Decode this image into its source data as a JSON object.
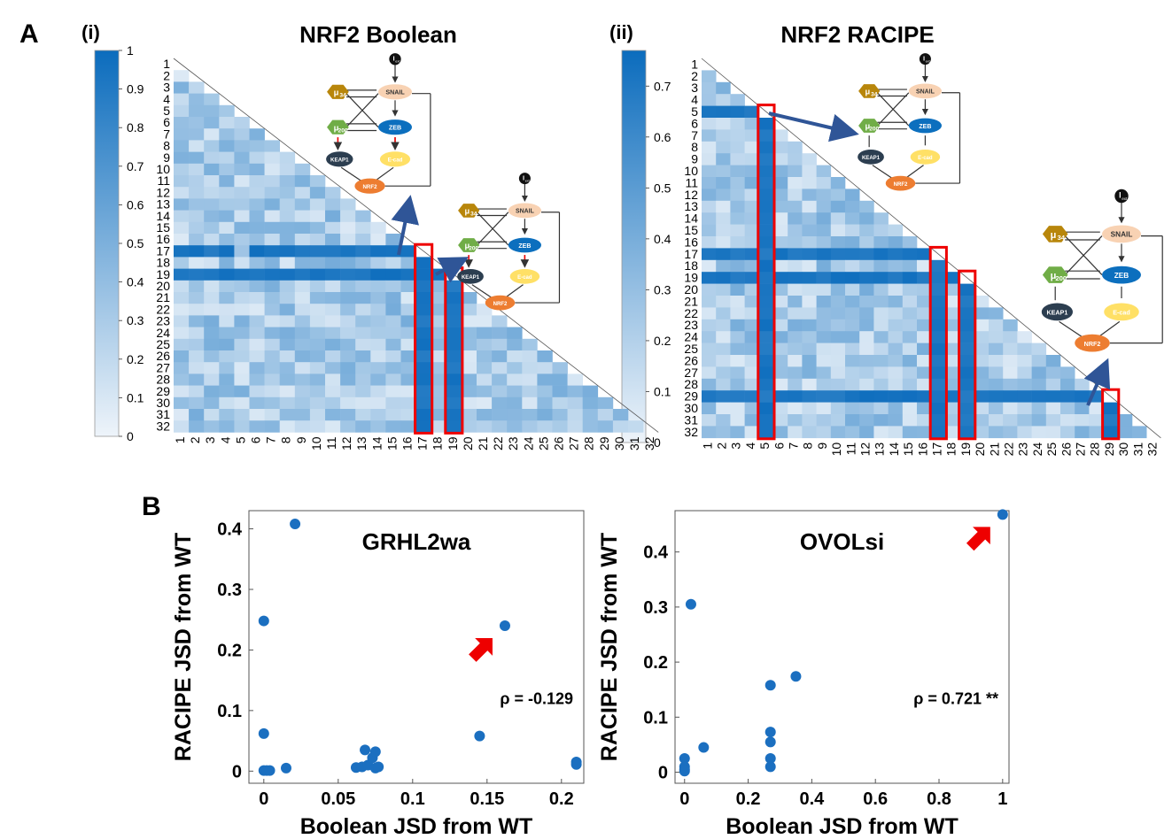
{
  "labels": {
    "panelA": "A",
    "panelB": "B",
    "subI": "(i)",
    "subII": "(ii)"
  },
  "heatmaps": [
    {
      "title": "NRF2 Boolean",
      "colorbar_ticks": [
        "0",
        "0.1",
        "0.2",
        "0.3",
        "0.4",
        "0.5",
        "0.6",
        "0.7",
        "0.8",
        "0.9",
        "1"
      ],
      "colorbar_max": 1,
      "highlight_indices": [
        17,
        19
      ],
      "dark_rows": [
        17,
        19
      ],
      "row_labels": [
        "1",
        "2",
        "3",
        "4",
        "5",
        "6",
        "7",
        "8",
        "9",
        "10",
        "11",
        "12",
        "13",
        "14",
        "15",
        "16",
        "17",
        "18",
        "19",
        "20",
        "21",
        "22",
        "23",
        "24",
        "25",
        "26",
        "27",
        "28",
        "29",
        "30",
        "31",
        "32"
      ]
    },
    {
      "title": "NRF2 RACIPE",
      "colorbar_ticks": [
        "0",
        "0.1",
        "0.2",
        "0.3",
        "0.4",
        "0.5",
        "0.6",
        "0.7"
      ],
      "colorbar_max": 0.77,
      "highlight_indices": [
        5,
        17,
        19,
        29
      ],
      "dark_rows": [
        5,
        17,
        19,
        29
      ],
      "row_labels": [
        "1",
        "2",
        "3",
        "4",
        "5",
        "6",
        "7",
        "8",
        "9",
        "10",
        "11",
        "12",
        "13",
        "14",
        "15",
        "16",
        "17",
        "18",
        "19",
        "20",
        "21",
        "22",
        "23",
        "24",
        "25",
        "26",
        "27",
        "28",
        "29",
        "30",
        "31",
        "32"
      ]
    }
  ],
  "network": {
    "nodes": [
      "I_ext",
      "SNAIL",
      "μ34",
      "ZEB",
      "μ200",
      "KEAP1",
      "E-cad",
      "NRF2"
    ],
    "iext_main": "I",
    "iext_sub": "ext",
    "mu_main": "μ",
    "mu34_sub": "34",
    "mu200_sub": "200"
  },
  "chart_data": [
    {
      "type": "scatter",
      "title": "GRHL2wa",
      "xlabel": "Boolean JSD from WT",
      "ylabel": "RACIPE JSD from WT",
      "xlim": [
        -0.01,
        0.215
      ],
      "ylim": [
        -0.02,
        0.43
      ],
      "xticks": [
        "0",
        "0.05",
        "0.1",
        "0.15",
        "0.2"
      ],
      "yticks": [
        "0",
        "0.1",
        "0.2",
        "0.3",
        "0.4"
      ],
      "annotation": "ρ = -0.129",
      "arrow_target": [
        0.162,
        0.24
      ],
      "points": [
        [
          0,
          0.248
        ],
        [
          0,
          0.062
        ],
        [
          0,
          0.001
        ],
        [
          0.002,
          0.001
        ],
        [
          0.004,
          0.001
        ],
        [
          0.021,
          0.408
        ],
        [
          0.015,
          0.005
        ],
        [
          0.062,
          0.006
        ],
        [
          0.066,
          0.007
        ],
        [
          0.068,
          0.035
        ],
        [
          0.07,
          0.01
        ],
        [
          0.073,
          0.022
        ],
        [
          0.075,
          0.005
        ],
        [
          0.075,
          0.032
        ],
        [
          0.077,
          0.007
        ],
        [
          0.145,
          0.058
        ],
        [
          0.162,
          0.24
        ],
        [
          0.21,
          0.015
        ],
        [
          0.21,
          0.011
        ]
      ]
    },
    {
      "type": "scatter",
      "title": "OVOLsi",
      "xlabel": "Boolean JSD from WT",
      "ylabel": "RACIPE JSD from WT",
      "xlim": [
        -0.03,
        1.02
      ],
      "ylim": [
        -0.02,
        0.475
      ],
      "xticks": [
        "0",
        "0.2",
        "0.4",
        "0.6",
        "0.8",
        "1"
      ],
      "yticks": [
        "0",
        "0.1",
        "0.2",
        "0.3",
        "0.4"
      ],
      "annotation": "ρ = 0.721 **",
      "arrow_target": [
        1.0,
        0.468
      ],
      "points": [
        [
          0,
          0.025
        ],
        [
          0,
          0.01
        ],
        [
          0,
          0.005
        ],
        [
          0,
          0.002
        ],
        [
          0.02,
          0.305
        ],
        [
          0.06,
          0.045
        ],
        [
          0.27,
          0.158
        ],
        [
          0.27,
          0.073
        ],
        [
          0.27,
          0.055
        ],
        [
          0.27,
          0.025
        ],
        [
          0.27,
          0.01
        ],
        [
          0.35,
          0.174
        ],
        [
          1.0,
          0.468
        ]
      ]
    }
  ]
}
